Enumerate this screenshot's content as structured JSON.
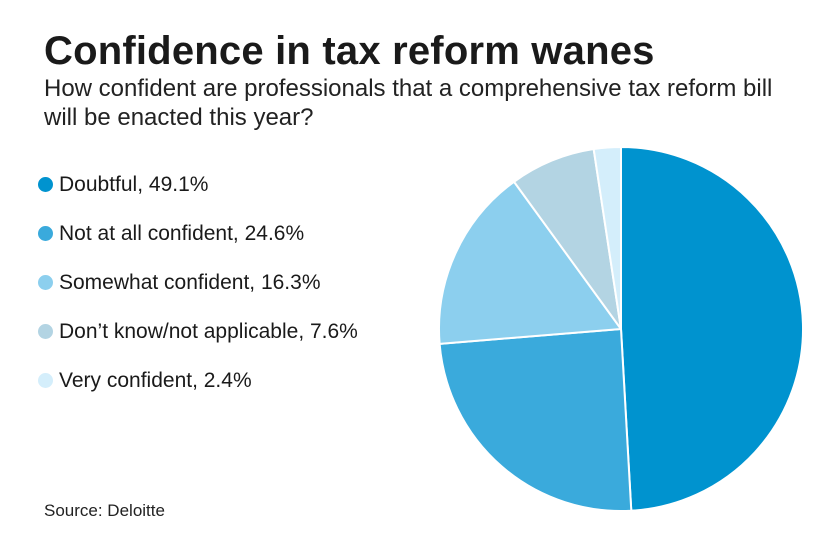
{
  "chart_data": {
    "type": "pie",
    "title": "Confidence in tax reform wanes",
    "subtitle": "How confident are professionals that a comprehensive tax reform bill will be enacted this year?",
    "source": "Source: Deloitte",
    "legend_position": "left",
    "slices": [
      {
        "label": "Doubtful, 49.1%",
        "name": "Doubtful",
        "value": 49.1,
        "color": "#0093cf"
      },
      {
        "label": "Not at all confident, 24.6%",
        "name": "Not at all confident",
        "value": 24.6,
        "color": "#3aaadc"
      },
      {
        "label": "Somewhat confident, 16.3%",
        "name": "Somewhat confident",
        "value": 16.3,
        "color": "#8ccfee"
      },
      {
        "label": "Don’t know/not applicable, 7.6%",
        "name": "Don’t know/not applicable",
        "value": 7.6,
        "color": "#b3d4e3"
      },
      {
        "label": "Very confident, 2.4%",
        "name": "Very confident",
        "value": 2.4,
        "color": "#d4eefb"
      }
    ]
  }
}
